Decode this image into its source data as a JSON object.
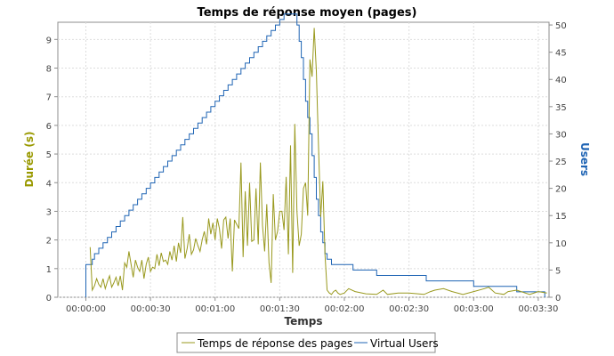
{
  "chart_data": {
    "type": "line",
    "title": "Temps de réponse moyen (pages)",
    "xlabel": "Temps",
    "ylabel_left": "Durée (s)",
    "ylabel_right": "Users",
    "x_unit": "seconds (elapsed, mm:ss)",
    "xlim": [
      -13,
      215
    ],
    "ylim_left": [
      0,
      9.6
    ],
    "ylim_right": [
      0,
      50.5
    ],
    "x_ticks": [
      {
        "value": 0,
        "label": "00:00:00"
      },
      {
        "value": 30,
        "label": "00:00:30"
      },
      {
        "value": 60,
        "label": "00:01:00"
      },
      {
        "value": 90,
        "label": "00:01:30"
      },
      {
        "value": 120,
        "label": "00:02:00"
      },
      {
        "value": 150,
        "label": "00:02:30"
      },
      {
        "value": 180,
        "label": "00:03:00"
      },
      {
        "value": 210,
        "label": "00:03:30"
      }
    ],
    "y_left_ticks": [
      "0",
      "1",
      "2",
      "3",
      "4",
      "5",
      "6",
      "7",
      "8",
      "9"
    ],
    "y_right_ticks": [
      "0",
      "5",
      "10",
      "15",
      "20",
      "25",
      "30",
      "35",
      "40",
      "45",
      "50"
    ],
    "grid": true,
    "legend_placement": "bottom",
    "colors": {
      "response": "#99991e",
      "users": "#1f64b4",
      "left_label": "#999900",
      "right_label": "#1f64b4"
    },
    "series": [
      {
        "name": "Temps de réponse des pages",
        "axis": "left",
        "points": [
          [
            2,
            1.75
          ],
          [
            3,
            0.25
          ],
          [
            4,
            0.4
          ],
          [
            5,
            0.65
          ],
          [
            6,
            0.45
          ],
          [
            7,
            0.35
          ],
          [
            8,
            0.65
          ],
          [
            9,
            0.3
          ],
          [
            10,
            0.55
          ],
          [
            11,
            0.75
          ],
          [
            12,
            0.35
          ],
          [
            13,
            0.5
          ],
          [
            14,
            0.7
          ],
          [
            15,
            0.4
          ],
          [
            16,
            0.75
          ],
          [
            17,
            0.25
          ],
          [
            18,
            1.2
          ],
          [
            19,
            1.05
          ],
          [
            20,
            1.6
          ],
          [
            21,
            1.15
          ],
          [
            22,
            0.7
          ],
          [
            23,
            1.3
          ],
          [
            24,
            1.05
          ],
          [
            25,
            0.9
          ],
          [
            26,
            1.3
          ],
          [
            27,
            0.65
          ],
          [
            28,
            1.15
          ],
          [
            29,
            1.4
          ],
          [
            30,
            0.9
          ],
          [
            31,
            1.05
          ],
          [
            32,
            1.0
          ],
          [
            33,
            1.5
          ],
          [
            34,
            1.1
          ],
          [
            35,
            1.55
          ],
          [
            36,
            1.25
          ],
          [
            37,
            1.3
          ],
          [
            38,
            1.15
          ],
          [
            39,
            1.6
          ],
          [
            40,
            1.3
          ],
          [
            41,
            1.8
          ],
          [
            42,
            1.25
          ],
          [
            43,
            1.9
          ],
          [
            44,
            1.55
          ],
          [
            45,
            2.8
          ],
          [
            46,
            1.35
          ],
          [
            47,
            1.7
          ],
          [
            48,
            2.2
          ],
          [
            49,
            1.5
          ],
          [
            50,
            1.65
          ],
          [
            51,
            2.05
          ],
          [
            52,
            1.8
          ],
          [
            53,
            1.6
          ],
          [
            54,
            2.0
          ],
          [
            55,
            2.3
          ],
          [
            56,
            1.85
          ],
          [
            57,
            2.75
          ],
          [
            58,
            2.2
          ],
          [
            59,
            2.6
          ],
          [
            60,
            2.0
          ],
          [
            61,
            2.75
          ],
          [
            62,
            2.4
          ],
          [
            63,
            1.7
          ],
          [
            64,
            2.7
          ],
          [
            65,
            2.8
          ],
          [
            66,
            2.05
          ],
          [
            67,
            2.75
          ],
          [
            68,
            0.9
          ],
          [
            69,
            2.7
          ],
          [
            70,
            2.55
          ],
          [
            71,
            2.4
          ],
          [
            72,
            4.7
          ],
          [
            73,
            1.4
          ],
          [
            74,
            3.7
          ],
          [
            75,
            1.8
          ],
          [
            76,
            4.0
          ],
          [
            77,
            1.95
          ],
          [
            78,
            2.0
          ],
          [
            79,
            3.8
          ],
          [
            80,
            1.85
          ],
          [
            81,
            4.7
          ],
          [
            82,
            2.5
          ],
          [
            83,
            1.6
          ],
          [
            84,
            3.25
          ],
          [
            85,
            1.2
          ],
          [
            86,
            0.5
          ],
          [
            87,
            3.6
          ],
          [
            88,
            2.0
          ],
          [
            89,
            2.3
          ],
          [
            90,
            3.0
          ],
          [
            91,
            3.0
          ],
          [
            92,
            2.35
          ],
          [
            93,
            4.2
          ],
          [
            94,
            1.5
          ],
          [
            95,
            5.3
          ],
          [
            96,
            0.85
          ],
          [
            97,
            6.05
          ],
          [
            98,
            3.0
          ],
          [
            99,
            1.8
          ],
          [
            100,
            2.2
          ],
          [
            101,
            3.8
          ],
          [
            102,
            4.0
          ],
          [
            103,
            2.85
          ],
          [
            104,
            8.3
          ],
          [
            105,
            7.7
          ],
          [
            106,
            9.4
          ],
          [
            107,
            7.9
          ],
          [
            108,
            5.3
          ],
          [
            109,
            2.8
          ],
          [
            110,
            4.05
          ],
          [
            111,
            1.5
          ],
          [
            112,
            0.25
          ],
          [
            113,
            0.15
          ],
          [
            114,
            0.1
          ],
          [
            115,
            0.2
          ],
          [
            116,
            0.25
          ],
          [
            117,
            0.15
          ],
          [
            118,
            0.1
          ],
          [
            120,
            0.15
          ],
          [
            122,
            0.3
          ],
          [
            125,
            0.2
          ],
          [
            130,
            0.12
          ],
          [
            135,
            0.1
          ],
          [
            138,
            0.25
          ],
          [
            140,
            0.1
          ],
          [
            145,
            0.15
          ],
          [
            150,
            0.15
          ],
          [
            157,
            0.1
          ],
          [
            160,
            0.2
          ],
          [
            162,
            0.25
          ],
          [
            166,
            0.3
          ],
          [
            170,
            0.2
          ],
          [
            175,
            0.1
          ],
          [
            180,
            0.2
          ],
          [
            185,
            0.3
          ],
          [
            187,
            0.35
          ],
          [
            190,
            0.15
          ],
          [
            194,
            0.1
          ],
          [
            196,
            0.2
          ],
          [
            200,
            0.25
          ],
          [
            206,
            0.1
          ],
          [
            210,
            0.2
          ],
          [
            214,
            0.15
          ]
        ]
      },
      {
        "name": "Virtual Users",
        "axis": "right",
        "step": true,
        "points": [
          [
            0,
            0
          ],
          [
            0,
            6
          ],
          [
            3,
            6
          ],
          [
            3,
            7
          ],
          [
            4,
            7
          ],
          [
            4,
            8
          ],
          [
            6,
            8
          ],
          [
            6,
            9
          ],
          [
            8,
            9
          ],
          [
            8,
            10
          ],
          [
            10,
            10
          ],
          [
            10,
            11
          ],
          [
            12,
            11
          ],
          [
            12,
            12
          ],
          [
            14,
            12
          ],
          [
            14,
            13
          ],
          [
            16,
            13
          ],
          [
            16,
            14
          ],
          [
            18,
            14
          ],
          [
            18,
            15
          ],
          [
            20,
            15
          ],
          [
            20,
            16
          ],
          [
            22,
            16
          ],
          [
            22,
            17
          ],
          [
            24,
            17
          ],
          [
            24,
            18
          ],
          [
            26,
            18
          ],
          [
            26,
            19
          ],
          [
            28,
            19
          ],
          [
            28,
            20
          ],
          [
            30,
            20
          ],
          [
            30,
            21
          ],
          [
            32,
            21
          ],
          [
            32,
            22
          ],
          [
            34,
            22
          ],
          [
            34,
            23
          ],
          [
            36,
            23
          ],
          [
            36,
            24
          ],
          [
            38,
            24
          ],
          [
            38,
            25
          ],
          [
            40,
            25
          ],
          [
            40,
            26
          ],
          [
            42,
            26
          ],
          [
            42,
            27
          ],
          [
            44,
            27
          ],
          [
            44,
            28
          ],
          [
            46,
            28
          ],
          [
            46,
            29
          ],
          [
            48,
            29
          ],
          [
            48,
            30
          ],
          [
            50,
            30
          ],
          [
            50,
            31
          ],
          [
            52,
            31
          ],
          [
            52,
            32
          ],
          [
            54,
            32
          ],
          [
            54,
            33
          ],
          [
            56,
            33
          ],
          [
            56,
            34
          ],
          [
            58,
            34
          ],
          [
            58,
            35
          ],
          [
            60,
            35
          ],
          [
            60,
            36
          ],
          [
            62,
            36
          ],
          [
            62,
            37
          ],
          [
            64,
            37
          ],
          [
            64,
            38
          ],
          [
            66,
            38
          ],
          [
            66,
            39
          ],
          [
            68,
            39
          ],
          [
            68,
            40
          ],
          [
            70,
            40
          ],
          [
            70,
            41
          ],
          [
            72,
            41
          ],
          [
            72,
            42
          ],
          [
            74,
            42
          ],
          [
            74,
            43
          ],
          [
            76,
            43
          ],
          [
            76,
            44
          ],
          [
            78,
            44
          ],
          [
            78,
            45
          ],
          [
            80,
            45
          ],
          [
            80,
            46
          ],
          [
            82,
            46
          ],
          [
            82,
            47
          ],
          [
            84,
            47
          ],
          [
            84,
            48
          ],
          [
            86,
            48
          ],
          [
            86,
            49
          ],
          [
            88,
            49
          ],
          [
            88,
            50
          ],
          [
            90,
            50
          ],
          [
            90,
            51
          ],
          [
            92,
            51
          ],
          [
            92,
            52
          ],
          [
            98,
            52
          ],
          [
            98,
            50
          ],
          [
            99,
            50
          ],
          [
            99,
            47
          ],
          [
            100,
            47
          ],
          [
            100,
            44
          ],
          [
            101,
            44
          ],
          [
            101,
            40
          ],
          [
            102,
            40
          ],
          [
            102,
            36
          ],
          [
            103,
            36
          ],
          [
            103,
            33
          ],
          [
            104,
            33
          ],
          [
            104,
            30
          ],
          [
            105,
            30
          ],
          [
            105,
            26
          ],
          [
            106,
            26
          ],
          [
            106,
            22
          ],
          [
            107,
            22
          ],
          [
            107,
            18
          ],
          [
            108,
            18
          ],
          [
            108,
            15
          ],
          [
            109,
            15
          ],
          [
            109,
            12
          ],
          [
            110,
            12
          ],
          [
            110,
            10
          ],
          [
            111,
            10
          ],
          [
            111,
            8
          ],
          [
            112,
            8
          ],
          [
            112,
            7
          ],
          [
            114,
            7
          ],
          [
            114,
            6
          ],
          [
            124,
            6
          ],
          [
            124,
            5
          ],
          [
            135,
            5
          ],
          [
            135,
            4
          ],
          [
            158,
            4
          ],
          [
            158,
            3
          ],
          [
            180,
            3
          ],
          [
            180,
            2
          ],
          [
            200,
            2
          ],
          [
            200,
            1
          ],
          [
            213,
            1
          ],
          [
            213,
            0
          ]
        ]
      }
    ]
  }
}
